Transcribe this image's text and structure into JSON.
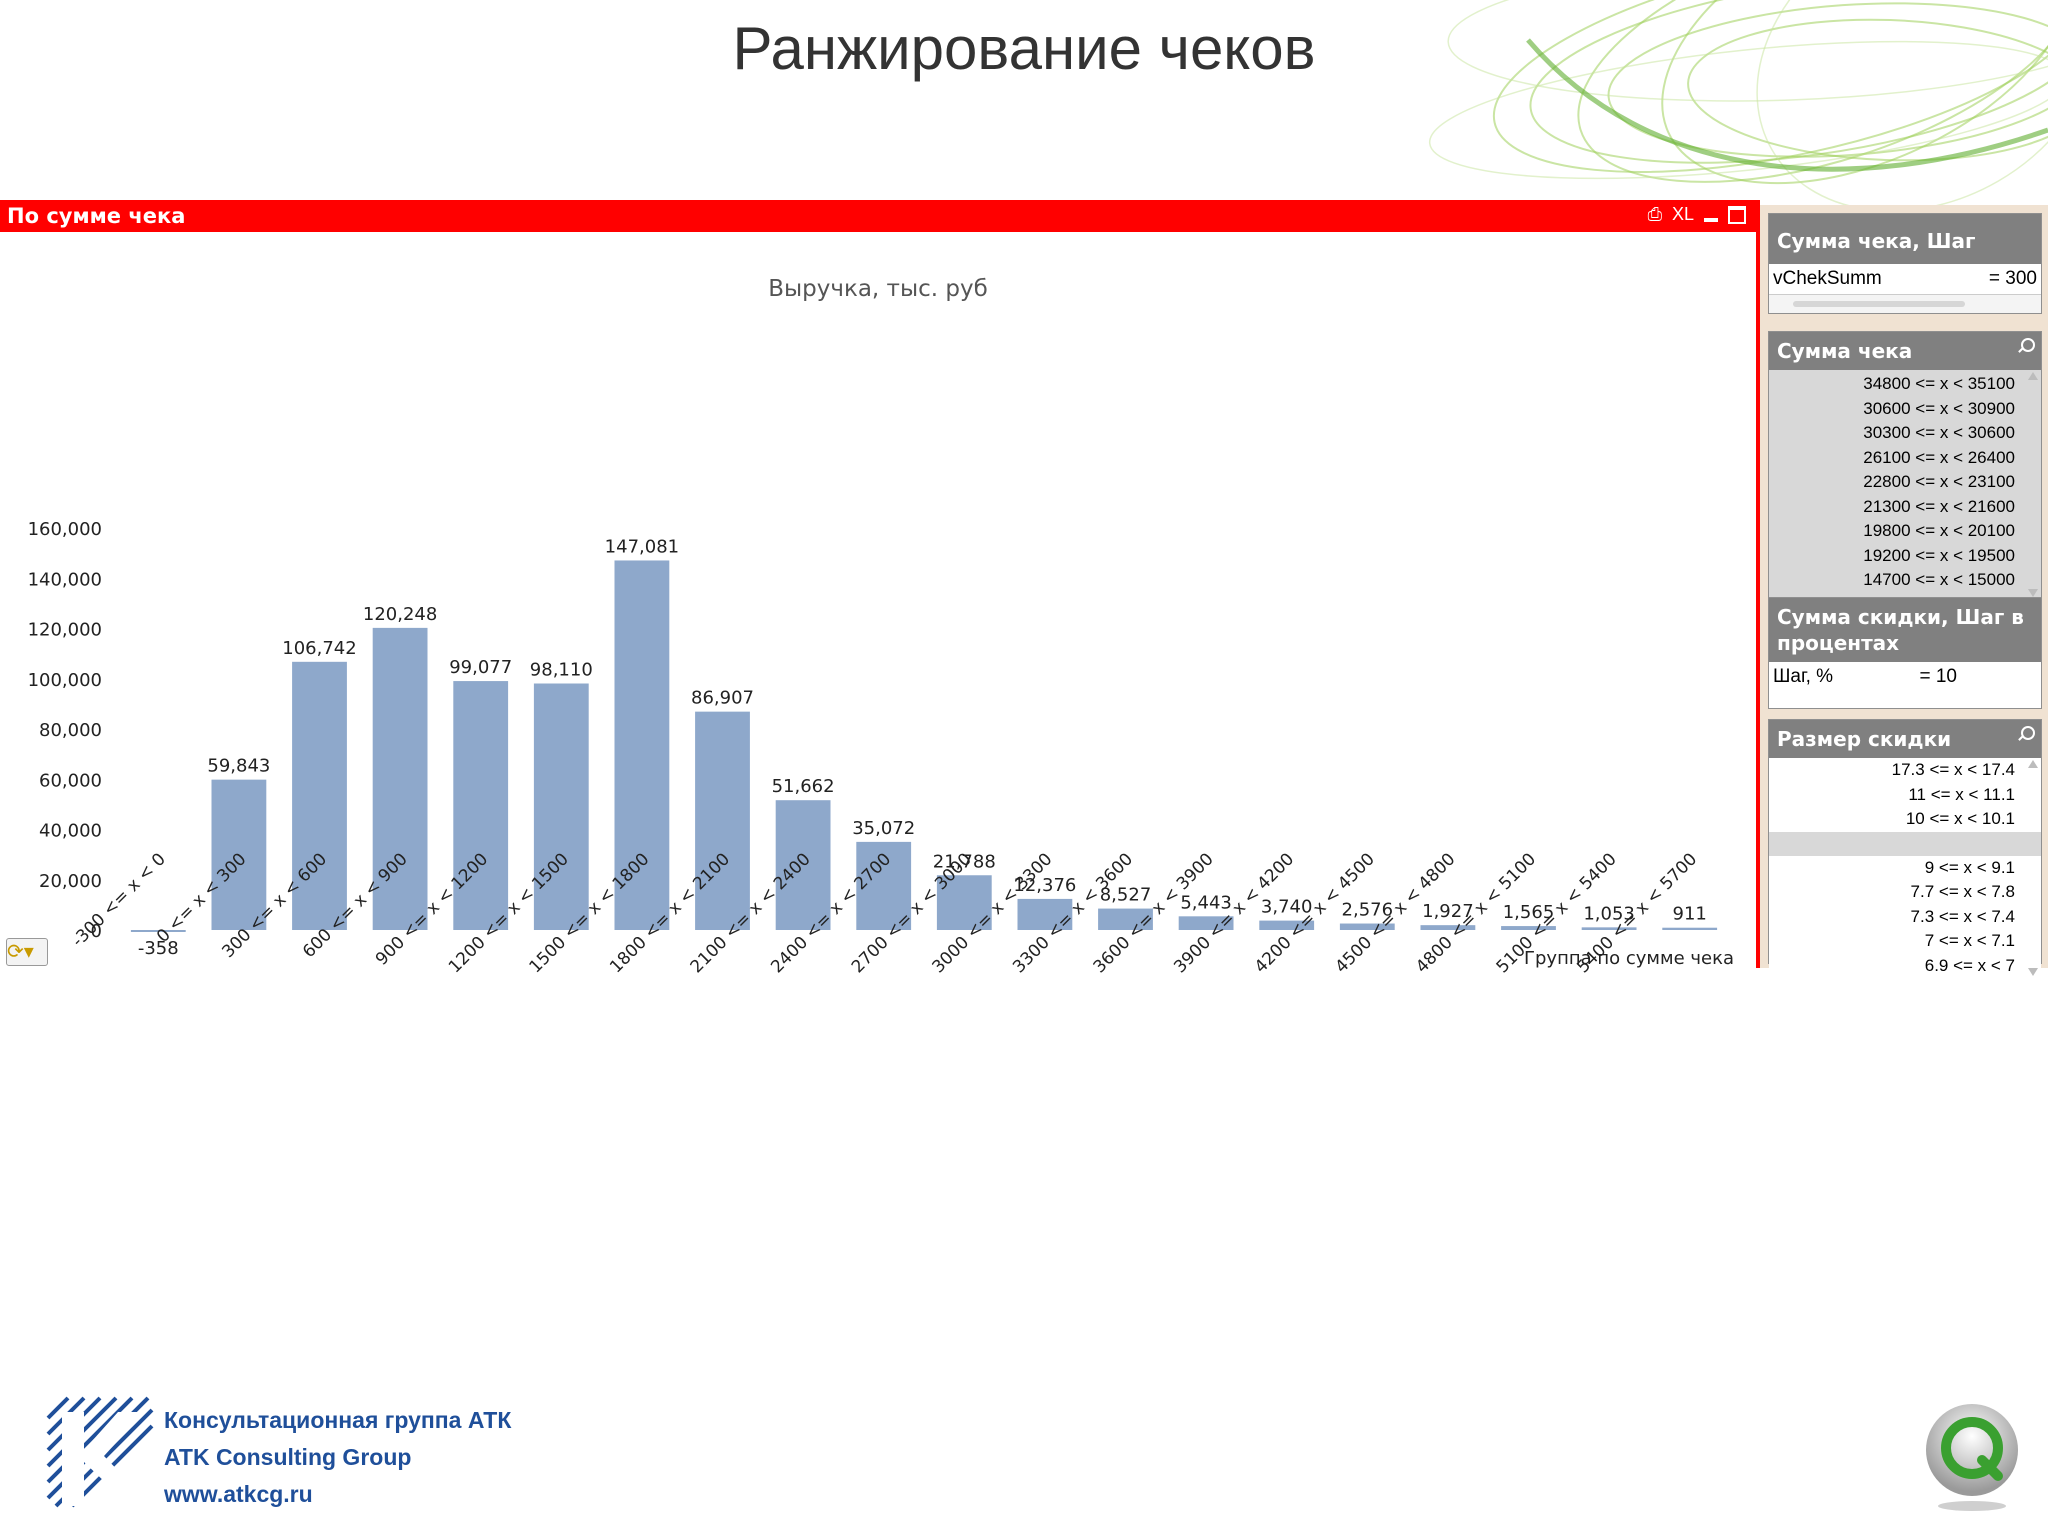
{
  "slide": {
    "title": "Ранжирование чеков"
  },
  "chart_panel": {
    "title": "По сумме чека",
    "icons": [
      "print-icon",
      "xl-export-icon",
      "minimize-icon",
      "maximize-icon"
    ],
    "xl_label": "XL"
  },
  "chart_data": {
    "type": "bar",
    "title": "Выручка, тыс. руб",
    "xlabel": "Группа по сумме чека",
    "ylabel": "",
    "ylim": [
      0,
      160000
    ],
    "yticks": [
      "160,000",
      "140,000",
      "120,000",
      "100,000",
      "80,000",
      "60,000",
      "40,000",
      "20,000",
      "0"
    ],
    "ytick_values": [
      160000,
      140000,
      120000,
      100000,
      80000,
      60000,
      40000,
      20000,
      0
    ],
    "categories": [
      "-300 <= x < 0",
      "0 <= x < 300",
      "300 <= x < 600",
      "600 <= x < 900",
      "900 <= x < 1200",
      "1200 <= x < 1500",
      "1500 <= x < 1800",
      "1800 <= x < 2100",
      "2100 <= x < 2400",
      "2400 <= x < 2700",
      "2700 <= x < 3000",
      "3000 <= x < 3300",
      "3300 <= x < 3600",
      "3600 <= x < 3900",
      "3900 <= x < 4200",
      "4200 <= x < 4500",
      "4500 <= x < 4800",
      "4800 <= x < 5100",
      "5100 <= x < 5400",
      "5400 <= x < 5700"
    ],
    "values": [
      -358,
      59843,
      106742,
      120248,
      99077,
      98110,
      147081,
      86907,
      51662,
      35072,
      21788,
      12376,
      8527,
      5443,
      3740,
      2576,
      1927,
      1565,
      1053,
      911
    ],
    "value_labels": [
      "-358",
      "59,843",
      "106,742",
      "120,248",
      "99,077",
      "98,110",
      "147,081",
      "86,907",
      "51,662",
      "35,072",
      "21,788",
      "12,376",
      "8,527",
      "5,443",
      "3,740",
      "2,576",
      "1,927",
      "1,565",
      "1,053",
      "911"
    ],
    "bar_color": "#8ea8cb"
  },
  "sidebar": {
    "step_box": {
      "caption": "Сумма чека, Шаг",
      "var_name": "vChekSumm",
      "var_value": "= 300"
    },
    "sum_box": {
      "caption": "Сумма чека",
      "items": [
        "34800 <= x < 35100",
        "30600 <= x < 30900",
        "30300 <= x < 30600",
        "26100 <= x < 26400",
        "22800 <= x < 23100",
        "21300 <= x < 21600",
        "19800 <= x < 20100",
        "19200 <= x < 19500",
        "14700 <= x < 15000"
      ]
    },
    "discount_step_box": {
      "caption": "Сумма скидки, Шаг в процентах",
      "var_name": "Шаг, %",
      "var_value": "= 10"
    },
    "discount_box": {
      "caption": "Размер скидки",
      "items_top": [
        "17.3 <= x < 17.4",
        "11 <= x < 11.1",
        "10 <= x < 10.1"
      ],
      "items_bottom": [
        "9 <= x < 9.1",
        "7.7 <= x < 7.8",
        "7.3 <= x < 7.4",
        "7 <= x < 7.1",
        "6.9 <= x < 7"
      ]
    }
  },
  "footer": {
    "company_ru": "Консультационная группа АТК",
    "company_en": "ATK Consulting Group",
    "website": "www.atkcg.ru"
  },
  "colors": {
    "header_red": "#ff0000",
    "sidebar_bg": "#f0e2d2",
    "caption_gray": "#808080",
    "brand_blue": "#1f4f9a"
  }
}
